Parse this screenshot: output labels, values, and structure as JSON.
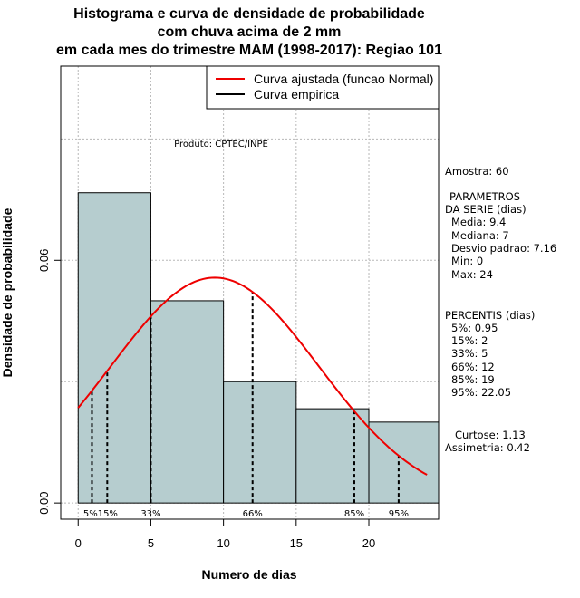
{
  "chart_data": {
    "type": "bar",
    "title_lines": [
      "Histograma e curva de densidade de probabilidade",
      "com chuva acima de 2 mm",
      "em cada mes do trimestre MAM (1998-2017): Regiao 101"
    ],
    "xlabel": "Numero de dias",
    "ylabel": "Densidade de probabilidade",
    "xlim": [
      -1.2,
      24.8
    ],
    "ylim": [
      -0.004,
      0.108
    ],
    "x_ticks": [
      0,
      5,
      10,
      15,
      20
    ],
    "y_ticks": [
      0.0,
      0.06
    ],
    "y_tick_labels": [
      "0.00",
      "0.06"
    ],
    "grid": true,
    "bins": [
      {
        "x0": 0,
        "x1": 5,
        "density": 0.0767
      },
      {
        "x0": 5,
        "x1": 10,
        "density": 0.05
      },
      {
        "x0": 10,
        "x1": 15,
        "density": 0.03
      },
      {
        "x0": 15,
        "x1": 20,
        "density": 0.0233
      },
      {
        "x0": 20,
        "x1": 25,
        "density": 0.02
      }
    ],
    "series": [
      {
        "name": "Curva ajustada (funcao Normal)",
        "color": "#ee0000",
        "mean": 9.4,
        "sd": 7.16,
        "x_range": [
          0,
          24
        ]
      },
      {
        "name": "Curva empirica",
        "color": "#000000"
      }
    ],
    "percentile_lines": [
      {
        "x": 0.95,
        "label": "5%"
      },
      {
        "x": 2,
        "label": "15%"
      },
      {
        "x": 5,
        "label": "33%"
      },
      {
        "x": 12,
        "label": "66%"
      },
      {
        "x": 19,
        "label": "85%"
      },
      {
        "x": 22.05,
        "label": "95%"
      }
    ],
    "percentile_label_row": "5%15%",
    "product_note": "Produto: CPTEC/INPE",
    "legend_position": "top-right",
    "colors": {
      "bars": "#b6cdcf",
      "fit_curve": "#ee0000"
    }
  },
  "side_panel": {
    "amostra": "Amostra: 60",
    "param_title_1": "PARAMETROS",
    "param_title_2": "DA SERIE (dias)",
    "media": "Media: 9.4",
    "mediana": "Mediana: 7",
    "desvio": "Desvio padrao: 7.16",
    "min": "Min: 0",
    "max": "Max: 24",
    "perc_title": "PERCENTIS (dias)",
    "p5": "5%: 0.95",
    "p15": "15%: 2",
    "p33": "33%: 5",
    "p66": "66%: 12",
    "p85": "85%: 19",
    "p95": "95%: 22.05",
    "curtose": "Curtose: 1.13",
    "assimetria": "Assimetria: 0.42"
  }
}
